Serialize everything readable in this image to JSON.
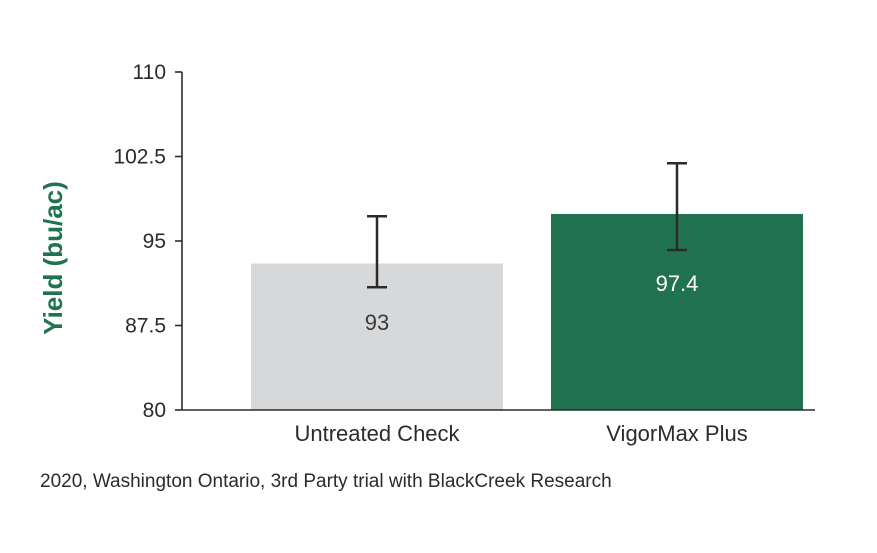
{
  "chart_data": {
    "type": "bar",
    "categories": [
      "Untreated Check",
      "VigorMax Plus"
    ],
    "values": [
      93,
      97.4
    ],
    "error_bars": [
      [
        90.9,
        97.2
      ],
      [
        94.2,
        101.9
      ]
    ],
    "data_labels": [
      "93",
      "97.4"
    ],
    "ylabel": "Yield (bu/ac)",
    "xlabel": "",
    "ylim": [
      80,
      110
    ],
    "yticks": [
      80,
      87.5,
      95,
      102.5,
      110
    ],
    "ytick_labels": [
      "80",
      "87.5",
      "95",
      "102.5",
      "110"
    ],
    "grid": false,
    "colors": {
      "bars": [
        "#d7d8da",
        "#217350"
      ],
      "data_label_text": [
        "#3a3a3a",
        "#ffffff"
      ],
      "ylabel": "#217350",
      "axis": "#2b2b2b",
      "error_bar": "#2b2b2b"
    }
  },
  "caption": "2020, Washington Ontario, 3rd Party trial with BlackCreek Research"
}
